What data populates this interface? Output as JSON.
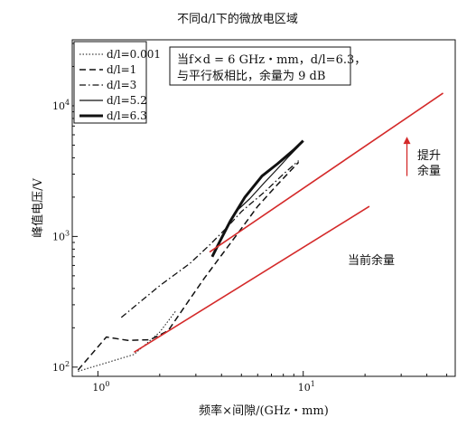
{
  "chart_data": {
    "type": "line",
    "title": "不同d/l下的微放电区域",
    "xlabel": "频率×间隙/(GHz・mm)",
    "ylabel": "峰值电压/V",
    "x_scale": "log",
    "y_scale": "log",
    "xlim": [
      0.75,
      55
    ],
    "ylim": [
      85,
      32000
    ],
    "x_ticks": [
      {
        "value": 1,
        "base": "10",
        "exp": "0"
      },
      {
        "value": 10,
        "base": "10",
        "exp": "1"
      }
    ],
    "y_ticks": [
      {
        "value": 100,
        "base": "10",
        "exp": "2"
      },
      {
        "value": 1000,
        "base": "10",
        "exp": "3"
      },
      {
        "value": 10000,
        "base": "10",
        "exp": "4"
      }
    ],
    "grid": false,
    "legend_position": "top-left",
    "note_lines": [
      "当f×d = 6 GHz・mm，d/l=6.3，",
      "与平行板相比，余量为 9 dB"
    ],
    "annotations": {
      "current_margin": "当前余量",
      "raise_margin_line1": "提升",
      "raise_margin_line2": "余量"
    },
    "series": [
      {
        "name": "d/l=0.001",
        "style": "dotted",
        "points": [
          [
            0.8,
            93
          ],
          [
            1.1,
            108
          ],
          [
            1.5,
            125
          ],
          [
            2.0,
            185
          ],
          [
            2.4,
            270
          ]
        ]
      },
      {
        "name": "d/l=1",
        "style": "dashed",
        "points": [
          [
            0.8,
            95
          ],
          [
            1.1,
            170
          ],
          [
            1.4,
            160
          ],
          [
            1.8,
            162
          ],
          [
            2.2,
            190
          ],
          [
            2.8,
            330
          ],
          [
            3.3,
            480
          ],
          [
            4.0,
            720
          ],
          [
            5.0,
            1150
          ],
          [
            6.0,
            1700
          ],
          [
            7.5,
            2500
          ],
          [
            9.5,
            3700
          ]
        ]
      },
      {
        "name": "d/l=3",
        "style": "dashdot",
        "points": [
          [
            1.3,
            240
          ],
          [
            2.0,
            420
          ],
          [
            2.8,
            620
          ],
          [
            3.5,
            860
          ],
          [
            4.2,
            1150
          ],
          [
            5.0,
            1550
          ],
          [
            6.5,
            2200
          ],
          [
            8.0,
            3000
          ],
          [
            9.5,
            3800
          ]
        ]
      },
      {
        "name": "d/l=5.2",
        "style": "solid",
        "points": [
          [
            4.6,
            1500
          ],
          [
            5.5,
            1950
          ],
          [
            6.5,
            2600
          ],
          [
            7.5,
            3300
          ],
          [
            8.5,
            4100
          ],
          [
            9.5,
            4900
          ]
        ]
      },
      {
        "name": "d/l=6.3",
        "style": "thick",
        "points": [
          [
            3.6,
            700
          ],
          [
            3.9,
            900
          ],
          [
            4.4,
            1300
          ],
          [
            5.2,
            2000
          ],
          [
            6.3,
            2900
          ],
          [
            7.5,
            3600
          ],
          [
            9.0,
            4600
          ],
          [
            10,
            5400
          ]
        ]
      }
    ],
    "reference_lines": [
      {
        "name": "current-margin-line",
        "color": "#d42a2a",
        "points": [
          [
            1.5,
            130
          ],
          [
            21,
            1700
          ]
        ]
      },
      {
        "name": "raised-margin-line",
        "color": "#d42a2a",
        "points": [
          [
            3.5,
            760
          ],
          [
            48,
            12500
          ]
        ]
      }
    ],
    "arrow": {
      "color": "#d42a2a",
      "x": 32,
      "y_from": 2900,
      "y_to": 5800
    }
  }
}
